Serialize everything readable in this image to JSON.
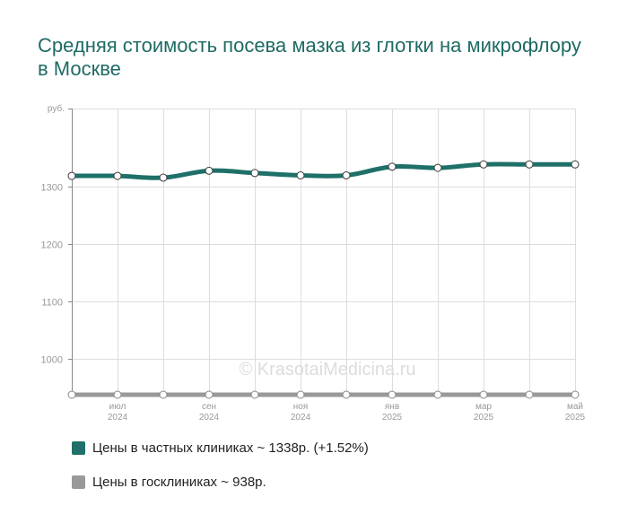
{
  "chart_data": {
    "type": "line",
    "title": "Средняя стоимость посева мазка из глотки на микрофлору в Москве",
    "ylabel": "руб.",
    "y_ticks": [
      1000,
      1100,
      1200,
      1300
    ],
    "ylim": [
      938,
      1435
    ],
    "x_tick_labels": [
      {
        "index": 1,
        "month": "июл",
        "year": "2024"
      },
      {
        "index": 3,
        "month": "сен",
        "year": "2024"
      },
      {
        "index": 5,
        "month": "ноя",
        "year": "2024"
      },
      {
        "index": 7,
        "month": "янв",
        "year": "2025"
      },
      {
        "index": 9,
        "month": "мар",
        "year": "2025"
      },
      {
        "index": 11,
        "month": "май",
        "year": "2025"
      }
    ],
    "x": [
      "2024-06",
      "2024-07",
      "2024-08",
      "2024-09",
      "2024-10",
      "2024-11",
      "2024-12",
      "2025-01",
      "2025-02",
      "2025-03",
      "2025-04",
      "2025-05"
    ],
    "series": [
      {
        "name": "Цены в частных клиниках",
        "legend_label": "Цены в частных клиниках ~ 1338р. (+1.52%)",
        "color": "#1e7068",
        "values": [
          1318,
          1318,
          1315,
          1327,
          1323,
          1319,
          1319,
          1334,
          1332,
          1338,
          1338,
          1338
        ]
      },
      {
        "name": "Цены в госклиниках",
        "legend_label": "Цены в госклиниках ~ 938р.",
        "color": "#999999",
        "values": [
          938,
          938,
          938,
          938,
          938,
          938,
          938,
          938,
          938,
          938,
          938,
          938
        ]
      }
    ],
    "grid": true,
    "legend_position": "bottom-left"
  },
  "watermark": "© KrasotaiMedicina.ru",
  "colors": {
    "grid": "#dddddd",
    "axis": "#888888",
    "tick_text": "#999999",
    "title": "#1e6b63"
  }
}
